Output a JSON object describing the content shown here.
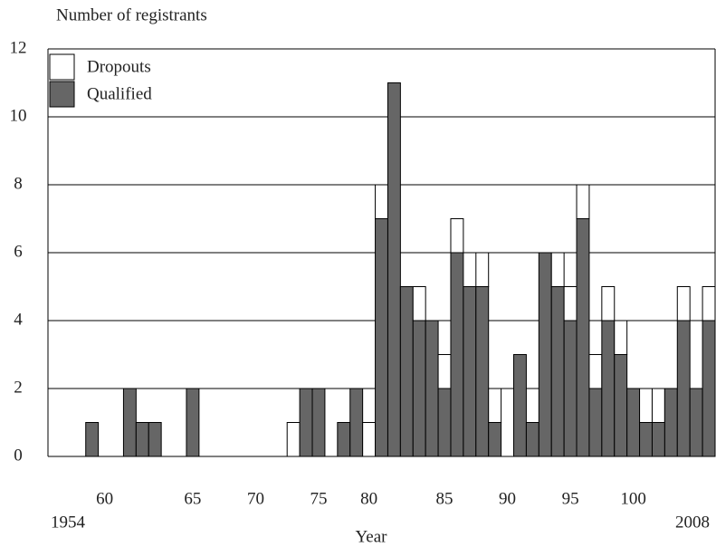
{
  "chart_data": {
    "type": "bar",
    "stacked": true,
    "y_label": "Number of registrants",
    "x_label": "Year",
    "start_label": "1954",
    "end_label": "2008",
    "categories": [
      null,
      null,
      null,
      null,
      "60",
      null,
      null,
      null,
      null,
      null,
      null,
      "65",
      null,
      null,
      null,
      null,
      "70",
      null,
      null,
      null,
      null,
      "75",
      null,
      null,
      null,
      "80",
      null,
      null,
      null,
      null,
      null,
      "85",
      null,
      null,
      null,
      null,
      "90",
      null,
      null,
      null,
      null,
      "95",
      null,
      null,
      null,
      null,
      "100",
      null,
      null,
      null,
      null,
      null,
      null
    ],
    "series": [
      {
        "name": "Qualified",
        "color": "#666666",
        "values": [
          0,
          0,
          0,
          1,
          0,
          0,
          2,
          1,
          1,
          0,
          0,
          2,
          0,
          0,
          0,
          0,
          0,
          0,
          0,
          0,
          2,
          2,
          0,
          1,
          2,
          0,
          7,
          11,
          5,
          4,
          4,
          2,
          6,
          5,
          5,
          1,
          0,
          3,
          1,
          6,
          5,
          4,
          7,
          2,
          4,
          3,
          2,
          1,
          1,
          2,
          4,
          2,
          4
        ]
      },
      {
        "name": "Dropouts",
        "color": "#ffffff",
        "values": [
          0,
          0,
          0,
          0,
          0,
          0,
          0,
          0,
          0,
          0,
          0,
          0,
          0,
          0,
          0,
          0,
          0,
          0,
          0,
          1,
          0,
          0,
          0,
          0,
          0,
          1,
          1,
          0,
          0,
          1,
          0,
          1,
          1,
          0,
          1,
          1,
          0,
          0,
          0,
          0,
          1,
          1,
          1,
          1,
          1,
          1,
          0,
          1,
          1,
          0,
          1,
          0,
          1
        ]
      }
    ],
    "ylim": [
      0,
      12
    ],
    "yticks": [
      0,
      2,
      4,
      6,
      8,
      10,
      12
    ],
    "grid": true,
    "legend": "top-left"
  }
}
